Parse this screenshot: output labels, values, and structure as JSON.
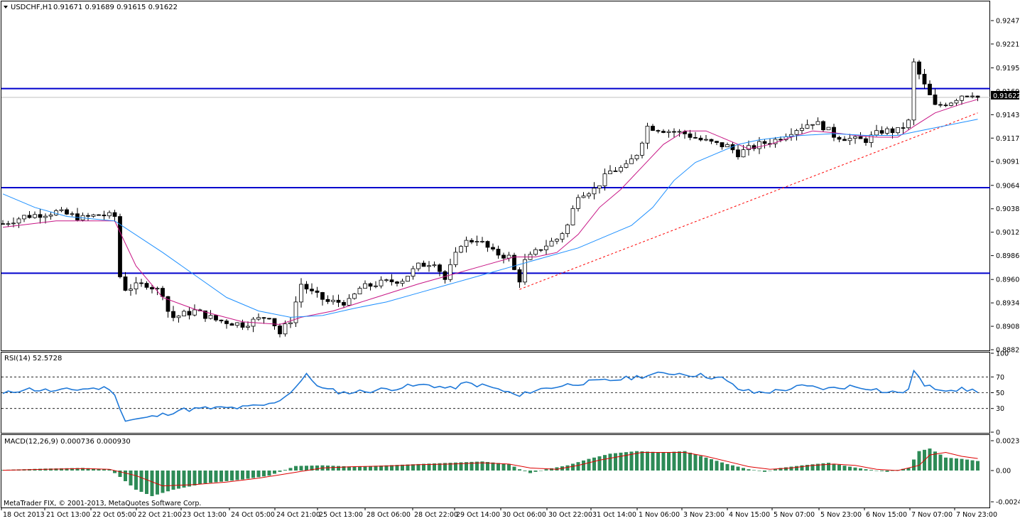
{
  "colors": {
    "background": "#ffffff",
    "grid": "#c0c0c0",
    "candle_up": "#ffffff",
    "candle_down": "#000000",
    "level_line": "#0000cd",
    "trend_line": "#ff0000",
    "ma_fast": "#c71585",
    "ma_slow": "#1e90ff",
    "rsi_line": "#1e78d8",
    "macd_hist": "#2e8b57",
    "macd_signal": "#dd0000"
  },
  "header": {
    "symbol_label": "USDCHF,H1",
    "ohlc_text": "0.91671 0.91689 0.91615 0.91622",
    "menu_icon": "triangle-down-icon"
  },
  "price_panel": {
    "tick_labels": [
      "0.92475",
      "0.92215",
      "0.91950",
      "0.91690",
      "0.91430",
      "0.91170",
      "0.90910",
      "0.90645",
      "0.90385",
      "0.90125",
      "0.89865",
      "0.89600",
      "0.89340",
      "0.89080",
      "0.88820"
    ],
    "current_price_label": "0.91622"
  },
  "rsi_panel": {
    "label": "RSI(14) 52.5728",
    "tick_labels": [
      "100",
      "70",
      "50",
      "30",
      "0"
    ]
  },
  "macd_panel": {
    "label": "MACD(12,26,9) 0.000736 0.000930",
    "tick_labels": [
      "0.002305",
      "0.00",
      "-0.002446"
    ]
  },
  "x_axis": {
    "tick_labels": [
      "18 Oct 2013",
      "21 Oct 13:00",
      "22 Oct 05:00",
      "22 Oct 21:00",
      "23 Oct 13:00",
      "24 Oct 05:00",
      "24 Oct 21:00",
      "25 Oct 13:00",
      "28 Oct 06:00",
      "28 Oct 22:00",
      "29 Oct 14:00",
      "30 Oct 06:00",
      "30 Oct 22:00",
      "31 Oct 14:00",
      "1 Nov 06:00",
      "3 Nov 23:00",
      "4 Nov 15:00",
      "5 Nov 07:00",
      "5 Nov 23:00",
      "6 Nov 15:00",
      "7 Nov 07:00",
      "7 Nov 23:00"
    ]
  },
  "footer": {
    "copyright": "MetaTrader FIX, © 2001-2013, MetaQuotes Software Corp."
  },
  "chart_data": [
    {
      "type": "candlestick",
      "symbol": "USDCHF",
      "timeframe": "H1",
      "ylim": [
        0.8882,
        0.9268
      ],
      "x_categories": [
        "18 Oct 2013",
        "21 Oct 13:00",
        "22 Oct 05:00",
        "22 Oct 21:00",
        "23 Oct 13:00",
        "24 Oct 05:00",
        "24 Oct 21:00",
        "25 Oct 13:00",
        "28 Oct 06:00",
        "28 Oct 22:00",
        "29 Oct 14:00",
        "30 Oct 06:00",
        "30 Oct 22:00",
        "31 Oct 14:00",
        "1 Nov 06:00",
        "3 Nov 23:00",
        "4 Nov 15:00",
        "5 Nov 07:00",
        "5 Nov 23:00",
        "6 Nov 15:00",
        "7 Nov 07:00",
        "7 Nov 23:00"
      ],
      "close_path": [
        [
          0,
          0.9022
        ],
        [
          4,
          0.903
        ],
        [
          10,
          0.9035
        ],
        [
          15,
          0.9028
        ],
        [
          18,
          0.9032
        ],
        [
          21,
          0.903
        ],
        [
          21.5,
          0.897
        ],
        [
          23,
          0.895
        ],
        [
          27,
          0.8955
        ],
        [
          30,
          0.8945
        ],
        [
          31,
          0.8925
        ],
        [
          32,
          0.8918
        ],
        [
          36,
          0.8925
        ],
        [
          40,
          0.8915
        ],
        [
          45,
          0.891
        ],
        [
          50,
          0.892
        ],
        [
          52,
          0.89
        ],
        [
          54,
          0.8915
        ],
        [
          56,
          0.8955
        ],
        [
          58,
          0.8945
        ],
        [
          61,
          0.8935
        ],
        [
          65,
          0.8935
        ],
        [
          67,
          0.895
        ],
        [
          70,
          0.8955
        ],
        [
          75,
          0.896
        ],
        [
          78,
          0.8975
        ],
        [
          81,
          0.898
        ],
        [
          83,
          0.896
        ],
        [
          86,
          0.9
        ],
        [
          89,
          0.9005
        ],
        [
          92,
          0.899
        ],
        [
          95,
          0.8985
        ],
        [
          96,
          0.897
        ],
        [
          97,
          0.896
        ],
        [
          98,
          0.898
        ],
        [
          101,
          0.8995
        ],
        [
          104,
          0.9005
        ],
        [
          106,
          0.902
        ],
        [
          108,
          0.9055
        ],
        [
          111,
          0.906
        ],
        [
          114,
          0.908
        ],
        [
          117,
          0.9085
        ],
        [
          119,
          0.91
        ],
        [
          121,
          0.913
        ],
        [
          125,
          0.9125
        ],
        [
          128,
          0.9122
        ],
        [
          131,
          0.9115
        ],
        [
          134,
          0.911
        ],
        [
          136,
          0.9108
        ],
        [
          138,
          0.91
        ],
        [
          142,
          0.911
        ],
        [
          145,
          0.9115
        ],
        [
          148,
          0.9125
        ],
        [
          152,
          0.9135
        ],
        [
          154,
          0.913
        ],
        [
          156,
          0.912
        ],
        [
          160,
          0.9115
        ],
        [
          162,
          0.9115
        ],
        [
          165,
          0.9125
        ],
        [
          168,
          0.9125
        ],
        [
          170,
          0.9135
        ],
        [
          171,
          0.92
        ],
        [
          173,
          0.9175
        ],
        [
          175,
          0.9152
        ],
        [
          178,
          0.9158
        ],
        [
          180,
          0.9165
        ],
        [
          182,
          0.9167
        ],
        [
          183,
          0.91622
        ]
      ],
      "horizontal_levels": [
        0.9172,
        0.9062,
        0.8967
      ],
      "trend_line": {
        "from": [
          97,
          0.8949
        ],
        "to": [
          183,
          0.9145
        ]
      },
      "moving_averages": [
        {
          "points": [
            [
              0,
              0.9018
            ],
            [
              10,
              0.9025
            ],
            [
              21,
              0.9025
            ],
            [
              25,
              0.8975
            ],
            [
              30,
              0.894
            ],
            [
              36,
              0.8927
            ],
            [
              45,
              0.8913
            ],
            [
              52,
              0.891
            ],
            [
              56,
              0.8918
            ],
            [
              62,
              0.8925
            ],
            [
              70,
              0.894
            ],
            [
              78,
              0.8955
            ],
            [
              84,
              0.8965
            ],
            [
              90,
              0.8975
            ],
            [
              96,
              0.8985
            ],
            [
              100,
              0.8985
            ],
            [
              104,
              0.899
            ],
            [
              108,
              0.901
            ],
            [
              112,
              0.904
            ],
            [
              116,
              0.906
            ],
            [
              120,
              0.9085
            ],
            [
              124,
              0.911
            ],
            [
              128,
              0.9125
            ],
            [
              132,
              0.9125
            ],
            [
              136,
              0.9115
            ],
            [
              140,
              0.9105
            ],
            [
              144,
              0.911
            ],
            [
              148,
              0.9118
            ],
            [
              152,
              0.9125
            ],
            [
              156,
              0.9123
            ],
            [
              160,
              0.912
            ],
            [
              164,
              0.9118
            ],
            [
              168,
              0.9118
            ],
            [
              171,
              0.913
            ],
            [
              175,
              0.9145
            ],
            [
              180,
              0.9155
            ],
            [
              183,
              0.916
            ]
          ]
        },
        {
          "points": [
            [
              0,
              0.9055
            ],
            [
              6,
              0.904
            ],
            [
              12,
              0.903
            ],
            [
              21,
              0.9025
            ],
            [
              30,
              0.899
            ],
            [
              36,
              0.8965
            ],
            [
              42,
              0.894
            ],
            [
              48,
              0.8925
            ],
            [
              54,
              0.8918
            ],
            [
              60,
              0.892
            ],
            [
              66,
              0.8928
            ],
            [
              72,
              0.8935
            ],
            [
              78,
              0.8945
            ],
            [
              84,
              0.8955
            ],
            [
              90,
              0.8965
            ],
            [
              96,
              0.8975
            ],
            [
              102,
              0.8985
            ],
            [
              108,
              0.8995
            ],
            [
              114,
              0.901
            ],
            [
              118,
              0.902
            ],
            [
              122,
              0.904
            ],
            [
              126,
              0.907
            ],
            [
              130,
              0.909
            ],
            [
              134,
              0.91
            ],
            [
              138,
              0.911
            ],
            [
              142,
              0.9115
            ],
            [
              146,
              0.9118
            ],
            [
              150,
              0.912
            ],
            [
              156,
              0.9122
            ],
            [
              162,
              0.912
            ],
            [
              168,
              0.912
            ],
            [
              172,
              0.9125
            ],
            [
              178,
              0.9132
            ],
            [
              183,
              0.9138
            ]
          ]
        }
      ]
    },
    {
      "type": "line",
      "name": "RSI(14)",
      "last_value": 52.5728,
      "ylim": [
        0,
        100
      ],
      "levels": [
        70,
        50,
        30
      ],
      "points": [
        [
          0,
          48
        ],
        [
          4,
          55
        ],
        [
          10,
          52
        ],
        [
          15,
          55
        ],
        [
          20,
          56
        ],
        [
          21.5,
          40
        ],
        [
          23,
          15
        ],
        [
          27,
          18
        ],
        [
          30,
          22
        ],
        [
          33,
          28
        ],
        [
          38,
          30
        ],
        [
          45,
          31
        ],
        [
          50,
          35
        ],
        [
          53,
          45
        ],
        [
          55,
          58
        ],
        [
          57,
          72
        ],
        [
          60,
          55
        ],
        [
          64,
          50
        ],
        [
          70,
          53
        ],
        [
          76,
          58
        ],
        [
          80,
          60
        ],
        [
          84,
          55
        ],
        [
          87,
          62
        ],
        [
          91,
          58
        ],
        [
          95,
          50
        ],
        [
          97,
          45
        ],
        [
          99,
          52
        ],
        [
          104,
          58
        ],
        [
          108,
          62
        ],
        [
          113,
          65
        ],
        [
          117,
          68
        ],
        [
          122,
          73
        ],
        [
          126,
          75
        ],
        [
          131,
          72
        ],
        [
          135,
          68
        ],
        [
          138,
          55
        ],
        [
          141,
          50
        ],
        [
          145,
          52
        ],
        [
          150,
          58
        ],
        [
          155,
          55
        ],
        [
          159,
          58
        ],
        [
          163,
          56
        ],
        [
          166,
          50
        ],
        [
          170,
          52
        ],
        [
          171,
          80
        ],
        [
          173,
          58
        ],
        [
          176,
          55
        ],
        [
          180,
          54
        ],
        [
          183,
          52.57
        ]
      ]
    },
    {
      "type": "bar+line",
      "name": "MACD(12,26,9)",
      "last_main": 0.000736,
      "last_signal": 0.00093,
      "ylim": [
        -0.002446,
        0.002305
      ],
      "histogram": [
        [
          0,
          5e-05
        ],
        [
          8,
          0.00015
        ],
        [
          15,
          0.0002
        ],
        [
          20,
          0.0001
        ],
        [
          22,
          -0.0005
        ],
        [
          25,
          -0.0015
        ],
        [
          28,
          -0.002
        ],
        [
          32,
          -0.0015
        ],
        [
          38,
          -0.001
        ],
        [
          45,
          -0.0007
        ],
        [
          50,
          -0.0004
        ],
        [
          52,
          -0.0001
        ],
        [
          55,
          0.00035
        ],
        [
          60,
          0.0004
        ],
        [
          66,
          0.0003
        ],
        [
          72,
          0.0004
        ],
        [
          78,
          0.0005
        ],
        [
          84,
          0.0006
        ],
        [
          90,
          0.0007
        ],
        [
          95,
          0.0005
        ],
        [
          97,
          0.0001
        ],
        [
          99,
          -0.0002
        ],
        [
          102,
          0.0001
        ],
        [
          106,
          0.0004
        ],
        [
          110,
          0.0009
        ],
        [
          114,
          0.0013
        ],
        [
          119,
          0.0015
        ],
        [
          124,
          0.0014
        ],
        [
          128,
          0.0015
        ],
        [
          132,
          0.001
        ],
        [
          136,
          0.0005
        ],
        [
          140,
          0.0001
        ],
        [
          143,
          -0.0001
        ],
        [
          146,
          0.0002
        ],
        [
          150,
          0.0004
        ],
        [
          155,
          0.0006
        ],
        [
          159,
          0.0003
        ],
        [
          162,
          0.0001
        ],
        [
          166,
          -0.0001
        ],
        [
          170,
          0.0002
        ],
        [
          172,
          0.0015
        ],
        [
          174,
          0.0017
        ],
        [
          177,
          0.001
        ],
        [
          180,
          0.0009
        ],
        [
          183,
          0.000736
        ]
      ],
      "signal": [
        [
          0,
          2e-05
        ],
        [
          8,
          0.0001
        ],
        [
          15,
          0.00015
        ],
        [
          20,
          0.0001
        ],
        [
          25,
          -0.0004
        ],
        [
          30,
          -0.0012
        ],
        [
          36,
          -0.0011
        ],
        [
          42,
          -0.0009
        ],
        [
          48,
          -0.0006
        ],
        [
          54,
          -0.0002
        ],
        [
          60,
          0.0002
        ],
        [
          66,
          0.0003
        ],
        [
          72,
          0.00035
        ],
        [
          78,
          0.00045
        ],
        [
          84,
          0.0005
        ],
        [
          90,
          0.0006
        ],
        [
          95,
          0.0005
        ],
        [
          99,
          0.0002
        ],
        [
          104,
          0.0001
        ],
        [
          108,
          0.0004
        ],
        [
          112,
          0.0008
        ],
        [
          116,
          0.0011
        ],
        [
          120,
          0.0014
        ],
        [
          124,
          0.0014
        ],
        [
          128,
          0.0014
        ],
        [
          132,
          0.0011
        ],
        [
          136,
          0.0007
        ],
        [
          140,
          0.0003
        ],
        [
          144,
          0.0001
        ],
        [
          148,
          0.0002
        ],
        [
          152,
          0.0004
        ],
        [
          156,
          0.0005
        ],
        [
          160,
          0.0004
        ],
        [
          164,
          0.0001
        ],
        [
          168,
          0.0
        ],
        [
          172,
          0.0004
        ],
        [
          174,
          0.0012
        ],
        [
          177,
          0.0014
        ],
        [
          180,
          0.0011
        ],
        [
          183,
          0.00093
        ]
      ]
    }
  ]
}
